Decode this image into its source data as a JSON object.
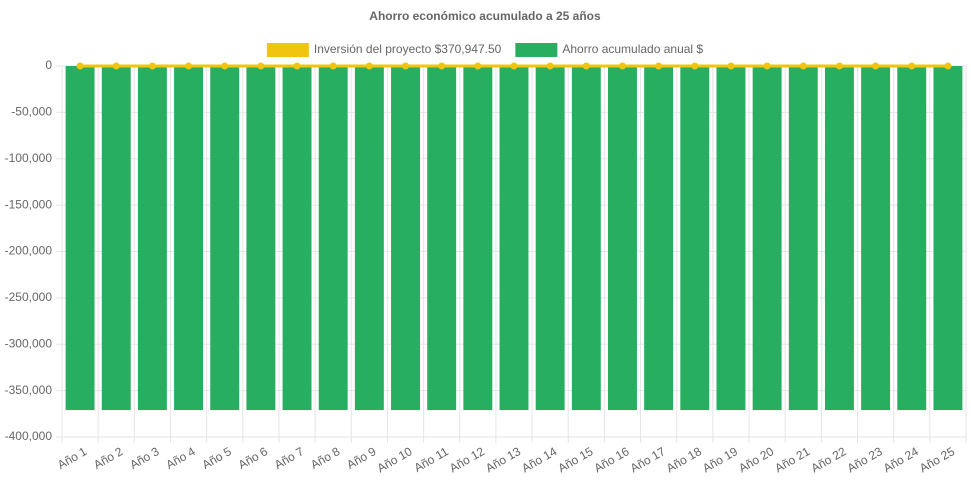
{
  "chart_data": {
    "type": "bar",
    "title": "Ahorro económico acumulado a 25 años",
    "categories": [
      "Año 1",
      "Año 2",
      "Año 3",
      "Año 4",
      "Año 5",
      "Año 6",
      "Año 7",
      "Año 8",
      "Año 9",
      "Año 10",
      "Año 11",
      "Año 12",
      "Año 13",
      "Año 14",
      "Año 15",
      "Año 16",
      "Año 17",
      "Año 18",
      "Año 19",
      "Año 20",
      "Año 21",
      "Año 22",
      "Año 23",
      "Año 24",
      "Año 25"
    ],
    "series": [
      {
        "name": "Inversión del proyecto $370,947.50",
        "type": "line",
        "color": "#f1c40f",
        "values": [
          0,
          0,
          0,
          0,
          0,
          0,
          0,
          0,
          0,
          0,
          0,
          0,
          0,
          0,
          0,
          0,
          0,
          0,
          0,
          0,
          0,
          0,
          0,
          0,
          0
        ]
      },
      {
        "name": "Ahorro acumulado anual $",
        "type": "bar",
        "color": "#27ae60",
        "values": [
          -370947.5,
          -370947.5,
          -370947.5,
          -370947.5,
          -370947.5,
          -370947.5,
          -370947.5,
          -370947.5,
          -370947.5,
          -370947.5,
          -370947.5,
          -370947.5,
          -370947.5,
          -370947.5,
          -370947.5,
          -370947.5,
          -370947.5,
          -370947.5,
          -370947.5,
          -370947.5,
          -370947.5,
          -370947.5,
          -370947.5,
          -370947.5,
          -370947.5
        ]
      }
    ],
    "ylim": [
      -400000,
      0
    ],
    "yticks": [
      0,
      {
        "value": -50000,
        "label": "-50,000"
      },
      {
        "value": -100000,
        "label": "-100,000"
      },
      {
        "value": -150000,
        "label": "-150,000"
      },
      {
        "value": -200000,
        "label": "-200,000"
      },
      {
        "value": -250000,
        "label": "-250,000"
      },
      {
        "value": -300000,
        "label": "-300,000"
      },
      {
        "value": -350000,
        "label": "-350,000"
      },
      {
        "value": -400000,
        "label": "-400,000"
      }
    ],
    "grid": true
  }
}
